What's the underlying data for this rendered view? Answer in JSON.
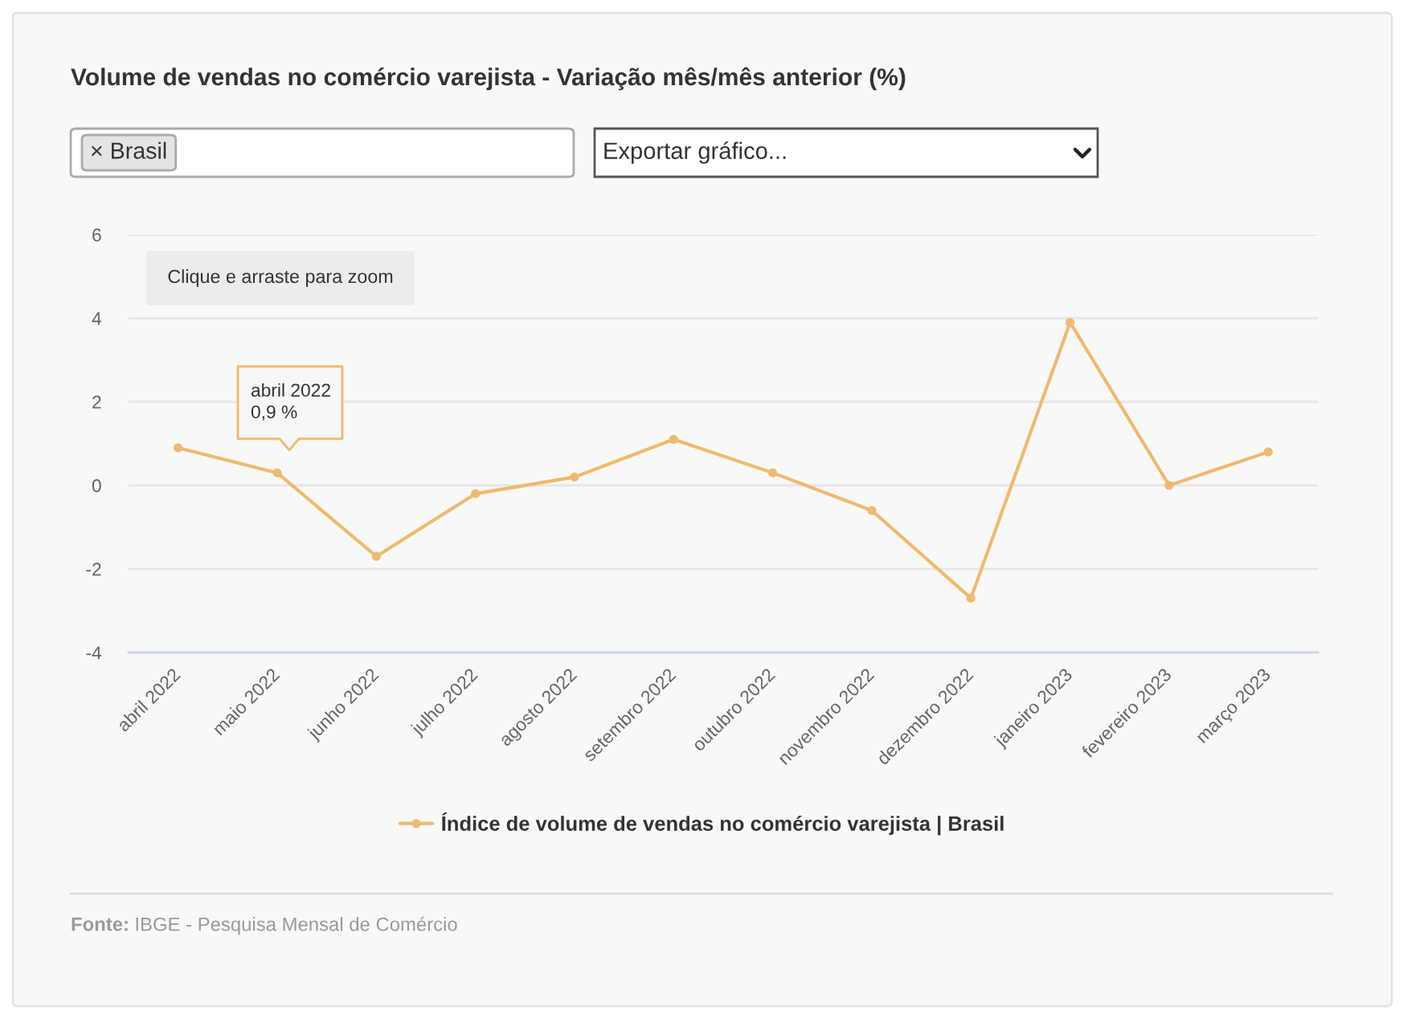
{
  "chart_data": {
    "type": "line",
    "title": "Volume de vendas no comércio varejista - Variação mês/mês anterior (%)",
    "categories": [
      "abril 2022",
      "maio 2022",
      "junho 2022",
      "julho 2022",
      "agosto 2022",
      "setembro 2022",
      "outubro 2022",
      "novembro 2022",
      "dezembro 2022",
      "janeiro 2023",
      "fevereiro 2023",
      "março 2023"
    ],
    "series": [
      {
        "name": "Índice de volume de vendas no comércio varejista | Brasil",
        "color": "#f0b96e",
        "values": [
          0.9,
          0.3,
          -1.7,
          -0.2,
          0.2,
          1.1,
          0.3,
          -0.6,
          -2.7,
          3.9,
          0.0,
          0.8
        ]
      }
    ],
    "ylim": [
      -4,
      6
    ],
    "yticks": [
      -4,
      -2,
      0,
      2,
      4,
      6
    ],
    "grid": "y",
    "legend": "bottom",
    "marker": "circle",
    "line_style": "solid",
    "annotations": [
      "× Brasil",
      "Exportar gráfico...",
      "Clique e arraste para zoom",
      "abril 2022\n0,9 %",
      "Fonte: IBGE - Pesquisa Mensal de Comércio"
    ]
  }
}
